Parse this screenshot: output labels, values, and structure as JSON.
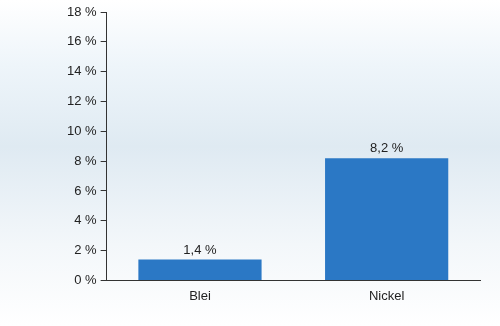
{
  "chart_data": {
    "type": "bar",
    "categories": [
      "Blei",
      "Nickel"
    ],
    "values": [
      1.4,
      8.2
    ],
    "value_labels": [
      "1,4 %",
      "8,2 %"
    ],
    "data_labels": true,
    "color": "#2b78c5",
    "ylim": [
      0,
      18
    ],
    "yticks": [
      {
        "value": 0,
        "label": "0 %"
      },
      {
        "value": 2,
        "label": "2 %"
      },
      {
        "value": 4,
        "label": "4 %"
      },
      {
        "value": 6,
        "label": "6 %"
      },
      {
        "value": 8,
        "label": "8 %"
      },
      {
        "value": 10,
        "label": "10 %"
      },
      {
        "value": 12,
        "label": "12 %"
      },
      {
        "value": 14,
        "label": "14 %"
      },
      {
        "value": 16,
        "label": "16 %"
      },
      {
        "value": 18,
        "label": "18 %"
      }
    ],
    "grid": false
  }
}
